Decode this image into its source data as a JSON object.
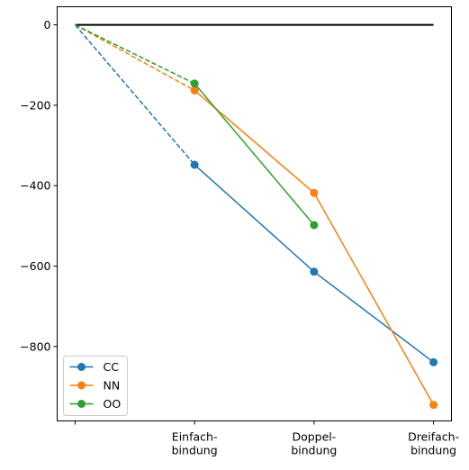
{
  "chart_data": {
    "type": "line",
    "title": "",
    "xlabel": "",
    "ylabel": "",
    "x": [
      0,
      1,
      2,
      3
    ],
    "x_tick_labels": [
      {
        "lines": []
      },
      {
        "lines": [
          "Einfach-",
          "bindung"
        ]
      },
      {
        "lines": [
          "Doppel-",
          "bindung"
        ]
      },
      {
        "lines": [
          "Dreifach-",
          "bindung"
        ]
      }
    ],
    "xlim": [
      -0.15,
      3.15
    ],
    "ylim": [
      -985,
      45
    ],
    "y_ticks": [
      0,
      -200,
      -400,
      -600,
      -800
    ],
    "y_tick_labels": [
      "0",
      "−200",
      "−400",
      "−600",
      "−800"
    ],
    "reference_line": {
      "y": 0,
      "x_range": [
        0,
        3
      ],
      "color": "#000000"
    },
    "series": [
      {
        "name": "CC",
        "color": "#1f77b4",
        "dashed": [
          [
            0,
            0
          ],
          [
            1,
            -348
          ]
        ],
        "solid": [
          [
            1,
            -348
          ],
          [
            2,
            -614
          ],
          [
            3,
            -839
          ]
        ]
      },
      {
        "name": "NN",
        "color": "#ff7f0e",
        "dashed": [
          [
            0,
            0
          ],
          [
            1,
            -163
          ]
        ],
        "solid": [
          [
            1,
            -163
          ],
          [
            2,
            -418
          ],
          [
            3,
            -945
          ]
        ]
      },
      {
        "name": "OO",
        "color": "#2ca02c",
        "dashed": [
          [
            0,
            0
          ],
          [
            1,
            -146
          ]
        ],
        "solid": [
          [
            1,
            -146
          ],
          [
            2,
            -498
          ]
        ]
      }
    ],
    "legend": {
      "position": "lower left"
    },
    "grid": false
  }
}
